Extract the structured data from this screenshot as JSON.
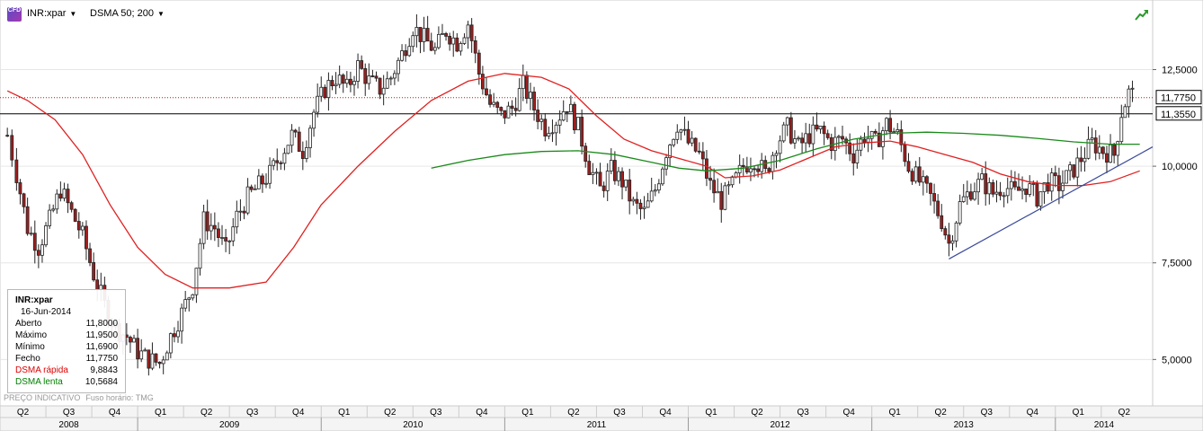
{
  "toolbar": {
    "logo_text": "CFD",
    "symbol": "INR:xpar",
    "indicator": "DSMA 50; 200",
    "trend_icon": "trend-up-icon"
  },
  "infobox": {
    "title": "INR:xpar",
    "date": "16-Jun-2014",
    "rows": [
      {
        "label": "Aberto",
        "value": "11,8000",
        "color": "#000000"
      },
      {
        "label": "Máximo",
        "value": "11,9500",
        "color": "#000000"
      },
      {
        "label": "Mínimo",
        "value": "11,6900",
        "color": "#000000"
      },
      {
        "label": "Fecho",
        "value": "11,7750",
        "color": "#000000"
      },
      {
        "label": "DSMA rápida",
        "value": "9,8843",
        "color": "#e00000"
      },
      {
        "label": "DSMA lenta",
        "value": "10,5684",
        "color": "#008000"
      }
    ]
  },
  "footer": {
    "indicative": "PREÇO INDICATIVO",
    "timezone": "Fuso horário: TMG"
  },
  "colors": {
    "up_candle": "#ffffff",
    "down_candle": "#a01e1e",
    "fast_ma": "#e02020",
    "slow_ma": "#1a8a1a",
    "trendline": "#3a4a9a",
    "price_line": "#a02020"
  },
  "chart_data": {
    "type": "candlestick",
    "symbol": "INR:xpar",
    "x_range": [
      "2008-04",
      "2014-06"
    ],
    "ylim": [
      3.8,
      14.3
    ],
    "y_ticks": [
      5.0,
      7.5,
      10.0,
      12.5
    ],
    "y_tick_labels": [
      "5,0000",
      "7,5000",
      "10,0000",
      "12,5000"
    ],
    "price_labels": [
      {
        "value": 11.775,
        "label": "11,7750"
      },
      {
        "value": 11.355,
        "label": "11,3550"
      }
    ],
    "horizontal_line": 11.355,
    "last_price": 11.775,
    "quarters": [
      "Q2",
      "Q3",
      "Q4",
      "Q1",
      "Q2",
      "Q3",
      "Q4",
      "Q1",
      "Q2",
      "Q3",
      "Q4",
      "Q1",
      "Q2",
      "Q3",
      "Q4",
      "Q1",
      "Q2",
      "Q3",
      "Q4",
      "Q1",
      "Q2",
      "Q3",
      "Q4",
      "Q1",
      "Q2"
    ],
    "years": [
      "2008",
      "2009",
      "2010",
      "2011",
      "2012",
      "2013",
      "2014"
    ],
    "close_path": [
      {
        "t": 2008.29,
        "v": 10.8
      },
      {
        "t": 2008.34,
        "v": 9.8
      },
      {
        "t": 2008.4,
        "v": 8.4
      },
      {
        "t": 2008.46,
        "v": 7.9
      },
      {
        "t": 2008.52,
        "v": 8.6
      },
      {
        "t": 2008.58,
        "v": 9.4
      },
      {
        "t": 2008.64,
        "v": 8.8
      },
      {
        "t": 2008.7,
        "v": 8.2
      },
      {
        "t": 2008.76,
        "v": 7.2
      },
      {
        "t": 2008.82,
        "v": 6.4
      },
      {
        "t": 2008.88,
        "v": 5.8
      },
      {
        "t": 2008.94,
        "v": 5.6
      },
      {
        "t": 2009.0,
        "v": 5.2
      },
      {
        "t": 2009.06,
        "v": 5.0
      },
      {
        "t": 2009.12,
        "v": 4.9
      },
      {
        "t": 2009.18,
        "v": 5.6
      },
      {
        "t": 2009.24,
        "v": 6.2
      },
      {
        "t": 2009.3,
        "v": 6.9
      },
      {
        "t": 2009.36,
        "v": 8.6
      },
      {
        "t": 2009.42,
        "v": 8.4
      },
      {
        "t": 2009.48,
        "v": 7.8
      },
      {
        "t": 2009.54,
        "v": 8.7
      },
      {
        "t": 2009.6,
        "v": 9.2
      },
      {
        "t": 2009.66,
        "v": 9.5
      },
      {
        "t": 2009.72,
        "v": 9.8
      },
      {
        "t": 2009.78,
        "v": 10.3
      },
      {
        "t": 2009.84,
        "v": 10.8
      },
      {
        "t": 2009.9,
        "v": 10.4
      },
      {
        "t": 2009.96,
        "v": 11.4
      },
      {
        "t": 2010.02,
        "v": 12.0
      },
      {
        "t": 2010.08,
        "v": 12.3
      },
      {
        "t": 2010.14,
        "v": 12.0
      },
      {
        "t": 2010.2,
        "v": 12.6
      },
      {
        "t": 2010.26,
        "v": 12.2
      },
      {
        "t": 2010.32,
        "v": 12.0
      },
      {
        "t": 2010.38,
        "v": 12.3
      },
      {
        "t": 2010.44,
        "v": 12.9
      },
      {
        "t": 2010.5,
        "v": 13.6
      },
      {
        "t": 2010.56,
        "v": 13.3
      },
      {
        "t": 2010.62,
        "v": 13.0
      },
      {
        "t": 2010.68,
        "v": 13.5
      },
      {
        "t": 2010.74,
        "v": 13.2
      },
      {
        "t": 2010.8,
        "v": 13.7
      },
      {
        "t": 2010.86,
        "v": 12.4
      },
      {
        "t": 2010.92,
        "v": 11.6
      },
      {
        "t": 2010.98,
        "v": 11.3
      },
      {
        "t": 2011.04,
        "v": 11.5
      },
      {
        "t": 2011.1,
        "v": 12.1
      },
      {
        "t": 2011.16,
        "v": 11.5
      },
      {
        "t": 2011.22,
        "v": 11.0
      },
      {
        "t": 2011.28,
        "v": 11.2
      },
      {
        "t": 2011.34,
        "v": 11.6
      },
      {
        "t": 2011.4,
        "v": 11.0
      },
      {
        "t": 2011.46,
        "v": 10.0
      },
      {
        "t": 2011.52,
        "v": 9.4
      },
      {
        "t": 2011.58,
        "v": 9.9
      },
      {
        "t": 2011.64,
        "v": 9.6
      },
      {
        "t": 2011.7,
        "v": 9.0
      },
      {
        "t": 2011.76,
        "v": 8.8
      },
      {
        "t": 2011.82,
        "v": 9.4
      },
      {
        "t": 2011.88,
        "v": 10.4
      },
      {
        "t": 2011.94,
        "v": 11.1
      },
      {
        "t": 2012.0,
        "v": 10.6
      },
      {
        "t": 2012.06,
        "v": 10.3
      },
      {
        "t": 2012.12,
        "v": 9.5
      },
      {
        "t": 2012.18,
        "v": 9.1
      },
      {
        "t": 2012.24,
        "v": 9.5
      },
      {
        "t": 2012.3,
        "v": 10.0
      },
      {
        "t": 2012.36,
        "v": 10.2
      },
      {
        "t": 2012.42,
        "v": 9.8
      },
      {
        "t": 2012.48,
        "v": 10.6
      },
      {
        "t": 2012.54,
        "v": 11.0
      },
      {
        "t": 2012.6,
        "v": 10.5
      },
      {
        "t": 2012.66,
        "v": 10.8
      },
      {
        "t": 2012.72,
        "v": 10.9
      },
      {
        "t": 2012.78,
        "v": 10.6
      },
      {
        "t": 2012.84,
        "v": 10.7
      },
      {
        "t": 2012.9,
        "v": 10.3
      },
      {
        "t": 2012.96,
        "v": 10.8
      },
      {
        "t": 2013.02,
        "v": 10.6
      },
      {
        "t": 2013.08,
        "v": 11.1
      },
      {
        "t": 2013.14,
        "v": 10.8
      },
      {
        "t": 2013.2,
        "v": 10.0
      },
      {
        "t": 2013.26,
        "v": 9.6
      },
      {
        "t": 2013.32,
        "v": 9.2
      },
      {
        "t": 2013.38,
        "v": 8.6
      },
      {
        "t": 2013.42,
        "v": 8.0
      },
      {
        "t": 2013.48,
        "v": 9.0
      },
      {
        "t": 2013.54,
        "v": 9.4
      },
      {
        "t": 2013.6,
        "v": 9.6
      },
      {
        "t": 2013.66,
        "v": 9.3
      },
      {
        "t": 2013.72,
        "v": 9.5
      },
      {
        "t": 2013.78,
        "v": 9.3
      },
      {
        "t": 2013.84,
        "v": 9.5
      },
      {
        "t": 2013.9,
        "v": 9.2
      },
      {
        "t": 2013.96,
        "v": 9.6
      },
      {
        "t": 2014.02,
        "v": 9.5
      },
      {
        "t": 2014.08,
        "v": 9.8
      },
      {
        "t": 2014.14,
        "v": 10.2
      },
      {
        "t": 2014.2,
        "v": 10.6
      },
      {
        "t": 2014.26,
        "v": 10.4
      },
      {
        "t": 2014.32,
        "v": 10.3
      },
      {
        "t": 2014.36,
        "v": 11.4
      },
      {
        "t": 2014.4,
        "v": 11.9
      },
      {
        "t": 2014.44,
        "v": 11.8
      }
    ],
    "series": [
      {
        "name": "DSMA rápida",
        "color": "#e02020",
        "points": [
          {
            "t": 2008.29,
            "v": 11.95
          },
          {
            "t": 2008.4,
            "v": 11.7
          },
          {
            "t": 2008.55,
            "v": 11.2
          },
          {
            "t": 2008.7,
            "v": 10.3
          },
          {
            "t": 2008.85,
            "v": 9.0
          },
          {
            "t": 2009.0,
            "v": 7.9
          },
          {
            "t": 2009.15,
            "v": 7.2
          },
          {
            "t": 2009.3,
            "v": 6.85
          },
          {
            "t": 2009.5,
            "v": 6.85
          },
          {
            "t": 2009.7,
            "v": 7.0
          },
          {
            "t": 2009.85,
            "v": 7.9
          },
          {
            "t": 2010.0,
            "v": 9.0
          },
          {
            "t": 2010.2,
            "v": 10.0
          },
          {
            "t": 2010.4,
            "v": 10.9
          },
          {
            "t": 2010.6,
            "v": 11.7
          },
          {
            "t": 2010.8,
            "v": 12.2
          },
          {
            "t": 2011.0,
            "v": 12.4
          },
          {
            "t": 2011.2,
            "v": 12.3
          },
          {
            "t": 2011.35,
            "v": 12.0
          },
          {
            "t": 2011.5,
            "v": 11.3
          },
          {
            "t": 2011.65,
            "v": 10.7
          },
          {
            "t": 2011.8,
            "v": 10.4
          },
          {
            "t": 2011.95,
            "v": 10.2
          },
          {
            "t": 2012.1,
            "v": 10.0
          },
          {
            "t": 2012.2,
            "v": 9.7
          },
          {
            "t": 2012.35,
            "v": 9.75
          },
          {
            "t": 2012.5,
            "v": 9.9
          },
          {
            "t": 2012.65,
            "v": 10.2
          },
          {
            "t": 2012.8,
            "v": 10.5
          },
          {
            "t": 2012.95,
            "v": 10.6
          },
          {
            "t": 2013.1,
            "v": 10.65
          },
          {
            "t": 2013.25,
            "v": 10.5
          },
          {
            "t": 2013.4,
            "v": 10.3
          },
          {
            "t": 2013.55,
            "v": 10.1
          },
          {
            "t": 2013.7,
            "v": 9.8
          },
          {
            "t": 2013.85,
            "v": 9.6
          },
          {
            "t": 2014.0,
            "v": 9.5
          },
          {
            "t": 2014.15,
            "v": 9.5
          },
          {
            "t": 2014.3,
            "v": 9.6
          },
          {
            "t": 2014.46,
            "v": 9.88
          }
        ]
      },
      {
        "name": "DSMA lenta",
        "color": "#1a8a1a",
        "points": [
          {
            "t": 2010.6,
            "v": 9.95
          },
          {
            "t": 2010.8,
            "v": 10.15
          },
          {
            "t": 2011.0,
            "v": 10.3
          },
          {
            "t": 2011.2,
            "v": 10.38
          },
          {
            "t": 2011.4,
            "v": 10.4
          },
          {
            "t": 2011.6,
            "v": 10.3
          },
          {
            "t": 2011.8,
            "v": 10.1
          },
          {
            "t": 2011.95,
            "v": 9.95
          },
          {
            "t": 2012.1,
            "v": 9.88
          },
          {
            "t": 2012.3,
            "v": 9.95
          },
          {
            "t": 2012.5,
            "v": 10.15
          },
          {
            "t": 2012.7,
            "v": 10.45
          },
          {
            "t": 2012.9,
            "v": 10.7
          },
          {
            "t": 2013.1,
            "v": 10.85
          },
          {
            "t": 2013.3,
            "v": 10.88
          },
          {
            "t": 2013.5,
            "v": 10.85
          },
          {
            "t": 2013.7,
            "v": 10.8
          },
          {
            "t": 2013.9,
            "v": 10.72
          },
          {
            "t": 2014.1,
            "v": 10.63
          },
          {
            "t": 2014.3,
            "v": 10.57
          },
          {
            "t": 2014.46,
            "v": 10.57
          }
        ]
      }
    ],
    "trendline": [
      {
        "t": 2013.42,
        "v": 7.6
      },
      {
        "t": 2014.53,
        "v": 10.5
      }
    ]
  }
}
